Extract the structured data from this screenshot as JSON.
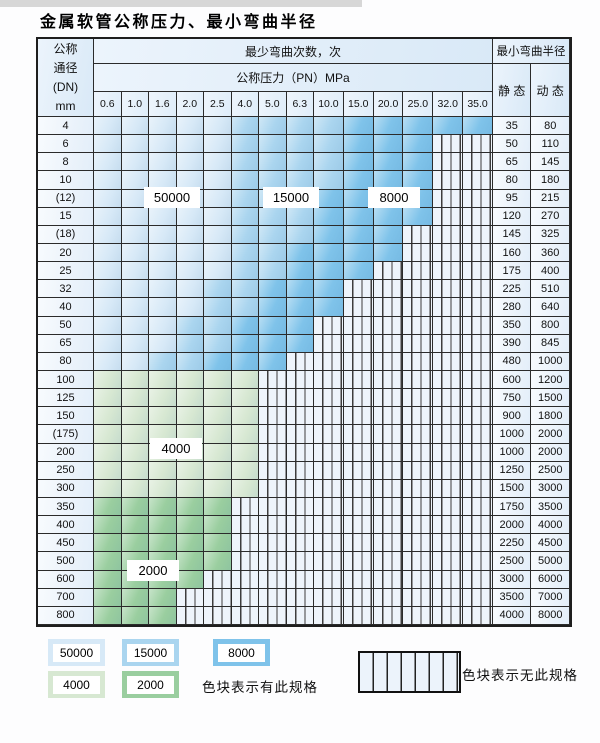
{
  "title": "金属软管公称压力、最小弯曲半径",
  "table": {
    "dn_header_lines": [
      "公称",
      "通径",
      "(DN)",
      "mm"
    ],
    "bend_count_header": "最少弯曲次数，次",
    "pressure_header": "公称压力（PN）MPa",
    "radius_header": "最小弯曲半径",
    "static_label": "静 态",
    "dynamic_label": "动 态",
    "pressure_values": [
      "0.6",
      "1.0",
      "1.6",
      "2.0",
      "2.5",
      "4.0",
      "5.0",
      "6.3",
      "10.0",
      "15.0",
      "20.0",
      "25.0",
      "32.0",
      "35.0"
    ],
    "rows": [
      {
        "dn": "4",
        "static": "35",
        "dynamic": "80",
        "zones": [
          [
            "b1",
            0,
            4
          ],
          [
            "b2",
            5,
            8
          ],
          [
            "b3",
            9,
            13
          ]
        ]
      },
      {
        "dn": "6",
        "static": "50",
        "dynamic": "110",
        "zones": [
          [
            "b1",
            0,
            4
          ],
          [
            "b2",
            5,
            8
          ],
          [
            "b3",
            9,
            11
          ]
        ]
      },
      {
        "dn": "8",
        "static": "65",
        "dynamic": "145",
        "zones": [
          [
            "b1",
            0,
            4
          ],
          [
            "b2",
            5,
            8
          ],
          [
            "b3",
            9,
            11
          ]
        ]
      },
      {
        "dn": "10",
        "static": "80",
        "dynamic": "180",
        "zones": [
          [
            "b1",
            0,
            4
          ],
          [
            "b2",
            5,
            8
          ],
          [
            "b3",
            9,
            11
          ]
        ]
      },
      {
        "dn": "(12)",
        "static": "95",
        "dynamic": "215",
        "zones": [
          [
            "b1",
            0,
            4
          ],
          [
            "b2",
            5,
            7
          ],
          [
            "b3",
            8,
            11
          ]
        ]
      },
      {
        "dn": "15",
        "static": "120",
        "dynamic": "270",
        "zones": [
          [
            "b1",
            0,
            4
          ],
          [
            "b2",
            5,
            7
          ],
          [
            "b3",
            8,
            11
          ]
        ]
      },
      {
        "dn": "(18)",
        "static": "145",
        "dynamic": "325",
        "zones": [
          [
            "b1",
            0,
            4
          ],
          [
            "b2",
            5,
            7
          ],
          [
            "b3",
            8,
            10
          ]
        ]
      },
      {
        "dn": "20",
        "static": "160",
        "dynamic": "360",
        "zones": [
          [
            "b1",
            0,
            4
          ],
          [
            "b2",
            5,
            6
          ],
          [
            "b3",
            7,
            10
          ]
        ]
      },
      {
        "dn": "25",
        "static": "175",
        "dynamic": "400",
        "zones": [
          [
            "b1",
            0,
            4
          ],
          [
            "b2",
            5,
            6
          ],
          [
            "b3",
            7,
            9
          ]
        ]
      },
      {
        "dn": "32",
        "static": "225",
        "dynamic": "510",
        "zones": [
          [
            "b1",
            0,
            3
          ],
          [
            "b2",
            4,
            5
          ],
          [
            "b3",
            6,
            8
          ]
        ]
      },
      {
        "dn": "40",
        "static": "280",
        "dynamic": "640",
        "zones": [
          [
            "b1",
            0,
            3
          ],
          [
            "b2",
            4,
            5
          ],
          [
            "b3",
            6,
            8
          ]
        ]
      },
      {
        "dn": "50",
        "static": "350",
        "dynamic": "800",
        "zones": [
          [
            "b1",
            0,
            2
          ],
          [
            "b2",
            3,
            4
          ],
          [
            "b3",
            5,
            7
          ]
        ]
      },
      {
        "dn": "65",
        "static": "390",
        "dynamic": "845",
        "zones": [
          [
            "b1",
            0,
            2
          ],
          [
            "b2",
            3,
            4
          ],
          [
            "b3",
            5,
            7
          ]
        ]
      },
      {
        "dn": "80",
        "static": "480",
        "dynamic": "1000",
        "zones": [
          [
            "b1",
            0,
            1
          ],
          [
            "b2",
            2,
            3
          ],
          [
            "b3",
            4,
            6
          ]
        ]
      },
      {
        "dn": "100",
        "static": "600",
        "dynamic": "1200",
        "zones": [
          [
            "g1",
            0,
            5
          ]
        ]
      },
      {
        "dn": "125",
        "static": "750",
        "dynamic": "1500",
        "zones": [
          [
            "g1",
            0,
            5
          ]
        ]
      },
      {
        "dn": "150",
        "static": "900",
        "dynamic": "1800",
        "zones": [
          [
            "g1",
            0,
            5
          ]
        ]
      },
      {
        "dn": "(175)",
        "static": "1000",
        "dynamic": "2000",
        "zones": [
          [
            "g1",
            0,
            5
          ]
        ]
      },
      {
        "dn": "200",
        "static": "1000",
        "dynamic": "2000",
        "zones": [
          [
            "g1",
            0,
            5
          ]
        ]
      },
      {
        "dn": "250",
        "static": "1250",
        "dynamic": "2500",
        "zones": [
          [
            "g1",
            0,
            5
          ]
        ]
      },
      {
        "dn": "300",
        "static": "1500",
        "dynamic": "3000",
        "zones": [
          [
            "g1",
            0,
            5
          ]
        ]
      },
      {
        "dn": "350",
        "static": "1750",
        "dynamic": "3500",
        "zones": [
          [
            "g2",
            0,
            4
          ]
        ]
      },
      {
        "dn": "400",
        "static": "2000",
        "dynamic": "4000",
        "zones": [
          [
            "g2",
            0,
            4
          ]
        ]
      },
      {
        "dn": "450",
        "static": "2250",
        "dynamic": "4500",
        "zones": [
          [
            "g2",
            0,
            4
          ]
        ]
      },
      {
        "dn": "500",
        "static": "2500",
        "dynamic": "5000",
        "zones": [
          [
            "g2",
            0,
            4
          ]
        ]
      },
      {
        "dn": "600",
        "static": "3000",
        "dynamic": "6000",
        "zones": [
          [
            "g2",
            0,
            3
          ]
        ]
      },
      {
        "dn": "700",
        "static": "3500",
        "dynamic": "7000",
        "zones": [
          [
            "g2",
            0,
            2
          ]
        ]
      },
      {
        "dn": "800",
        "static": "4000",
        "dynamic": "8000",
        "zones": [
          [
            "g2",
            0,
            2
          ]
        ]
      }
    ]
  },
  "zone_labels": [
    {
      "text": "50000"
    },
    {
      "text": "15000"
    },
    {
      "text": "8000"
    },
    {
      "text": "4000"
    },
    {
      "text": "2000"
    }
  ],
  "legend": {
    "chips": [
      {
        "label": "50000",
        "zone": "b1"
      },
      {
        "label": "15000",
        "zone": "b2"
      },
      {
        "label": "8000",
        "zone": "b3"
      },
      {
        "label": "4000",
        "zone": "g1"
      },
      {
        "label": "2000",
        "zone": "g2"
      }
    ],
    "available_text": "色块表示有此规格",
    "unavailable_text": "色块表示无此规格"
  },
  "colors": {
    "b1": "#d7e9f7",
    "b2": "#aad5ef",
    "b3": "#7fc3ea",
    "g1": "#d7e8d2",
    "g2": "#9ace9f",
    "stripe_bg": "#eef4fb",
    "stripe_line": "#3d3d3d",
    "header_bg": "#e2eefa",
    "side_bg": "#ebf3fb",
    "border": "#2b2b2b"
  }
}
